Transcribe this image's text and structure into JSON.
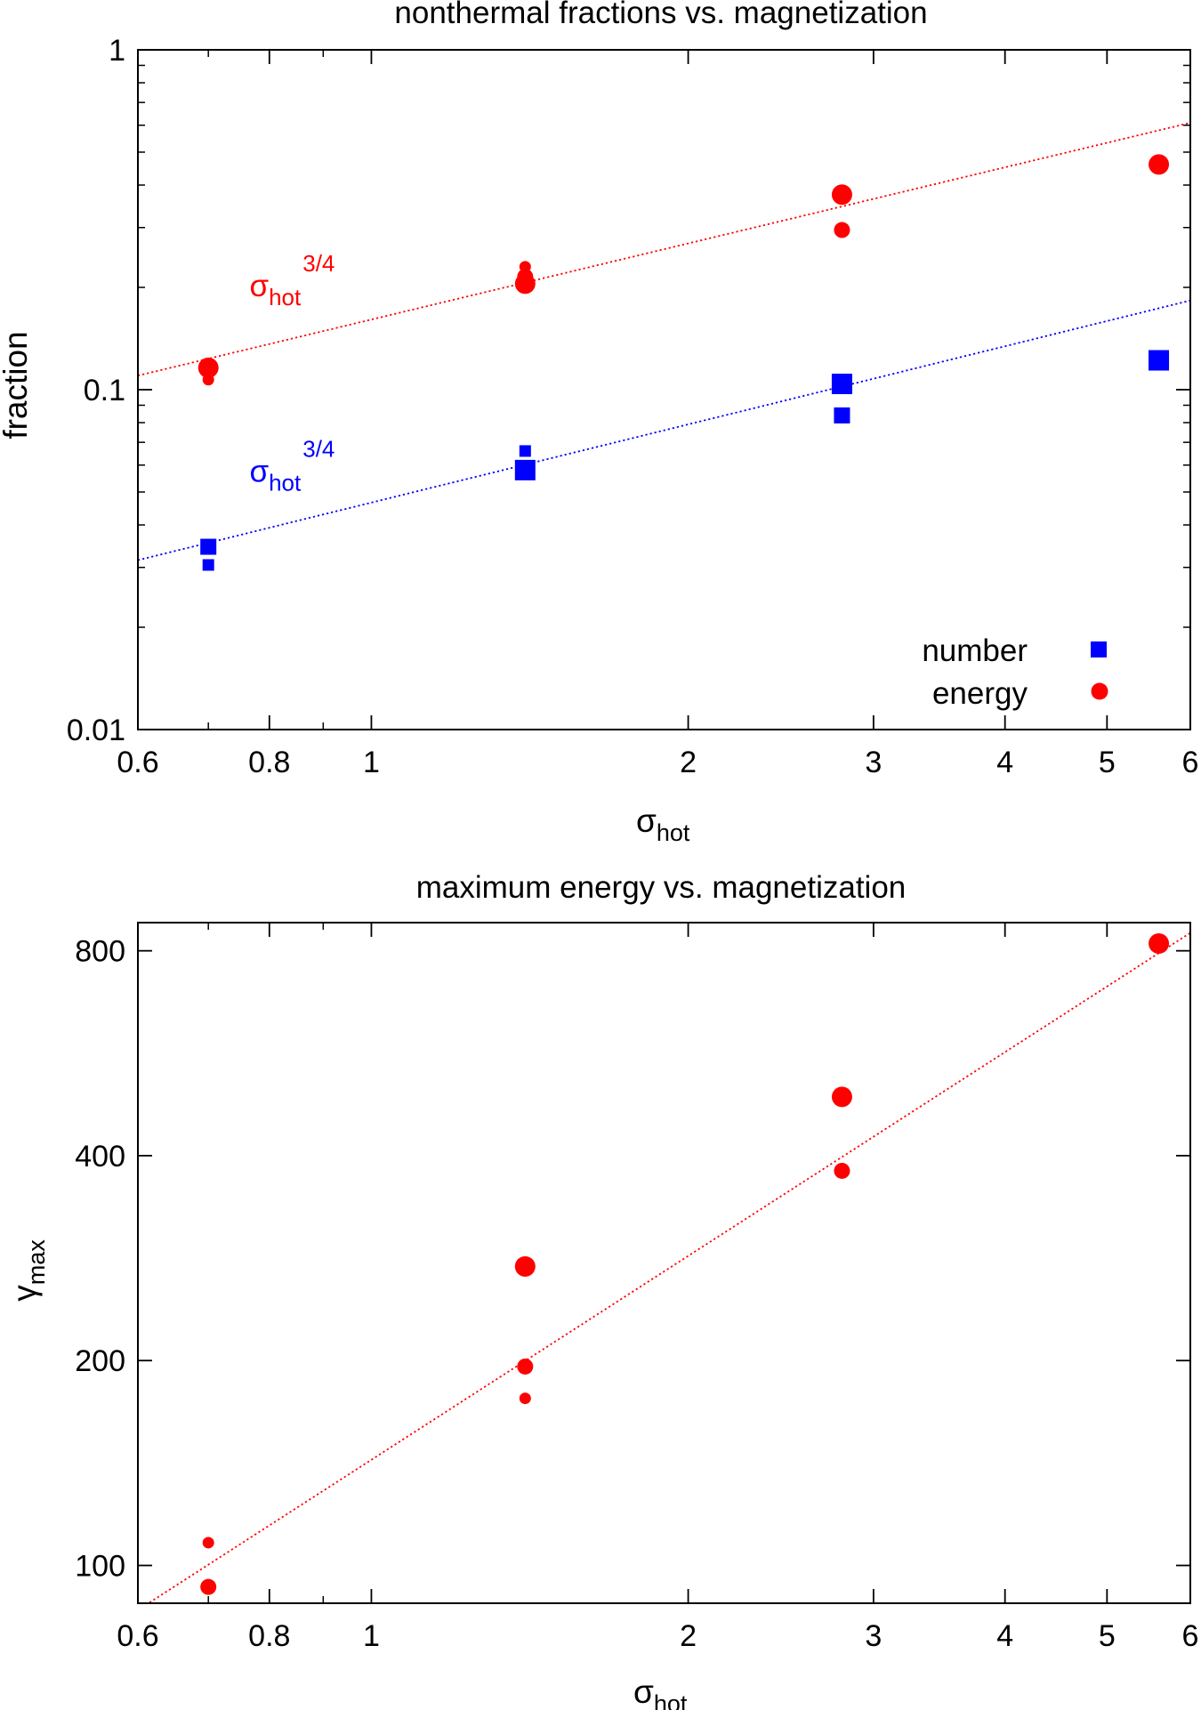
{
  "colors": {
    "number": "#0000ff",
    "energy": "#ff0000",
    "axis": "#000000"
  },
  "chart_data": [
    {
      "type": "scatter",
      "title": "nonthermal fractions vs. magnetization",
      "xlabel": "σ",
      "xlabel_sub": "hot",
      "ylabel": "fraction",
      "xscale": "log",
      "yscale": "log",
      "xlim": [
        0.6,
        6
      ],
      "ylim": [
        0.01,
        1
      ],
      "xticks": [
        {
          "v": 0.6,
          "label": "0.6"
        },
        {
          "v": 0.8,
          "label": "0.8"
        },
        {
          "v": 1,
          "label": "1"
        },
        {
          "v": 2,
          "label": "2"
        },
        {
          "v": 3,
          "label": "3"
        },
        {
          "v": 4,
          "label": "4"
        },
        {
          "v": 5,
          "label": "5"
        },
        {
          "v": 6,
          "label": "6"
        }
      ],
      "yticks": [
        {
          "v": 0.01,
          "label": "0.01"
        },
        {
          "v": 0.1,
          "label": "0.1"
        },
        {
          "v": 1,
          "label": "1"
        }
      ],
      "legend": {
        "position": "bottom-right",
        "entries": [
          "number",
          "energy"
        ]
      },
      "series": [
        {
          "name": "energy",
          "marker": "circle",
          "color": "#ff0000",
          "points": [
            {
              "x": 0.7,
              "y": 0.116,
              "size": "large"
            },
            {
              "x": 0.7,
              "y": 0.107,
              "size": "small"
            },
            {
              "x": 1.4,
              "y": 0.205,
              "size": "large"
            },
            {
              "x": 1.4,
              "y": 0.215,
              "size": "medium"
            },
            {
              "x": 1.4,
              "y": 0.23,
              "size": "small"
            },
            {
              "x": 2.8,
              "y": 0.375,
              "size": "large"
            },
            {
              "x": 2.8,
              "y": 0.295,
              "size": "medium"
            },
            {
              "x": 5.6,
              "y": 0.46,
              "size": "large"
            }
          ]
        },
        {
          "name": "number",
          "marker": "square",
          "color": "#0000ff",
          "points": [
            {
              "x": 0.7,
              "y": 0.0345,
              "size": "medium"
            },
            {
              "x": 0.7,
              "y": 0.0305,
              "size": "small"
            },
            {
              "x": 1.4,
              "y": 0.058,
              "size": "large"
            },
            {
              "x": 1.4,
              "y": 0.066,
              "size": "small"
            },
            {
              "x": 2.8,
              "y": 0.104,
              "size": "large"
            },
            {
              "x": 2.8,
              "y": 0.084,
              "size": "medium"
            },
            {
              "x": 5.6,
              "y": 0.122,
              "size": "large"
            }
          ]
        }
      ],
      "fit_lines": [
        {
          "color": "#ff0000",
          "style": "dotted",
          "x": [
            0.6,
            6
          ],
          "y": [
            0.11,
            0.61
          ]
        },
        {
          "color": "#0000ff",
          "style": "dotted",
          "x": [
            0.6,
            6
          ],
          "y": [
            0.0315,
            0.183
          ]
        }
      ],
      "annotations": [
        {
          "text": "σ",
          "sub": "hot",
          "sup": "3/4",
          "color": "#ff0000",
          "x": 0.82,
          "y": 0.2
        },
        {
          "text": "σ",
          "sub": "hot",
          "sup": "3/4",
          "color": "#0000ff",
          "x": 0.82,
          "y": 0.057
        }
      ]
    },
    {
      "type": "scatter",
      "title": "maximum energy vs. magnetization",
      "xlabel": "σ",
      "xlabel_sub": "hot",
      "ylabel": "γ",
      "ylabel_sub": "max",
      "xscale": "log",
      "yscale": "log",
      "xlim": [
        0.6,
        6
      ],
      "ylim": [
        88,
        880
      ],
      "xticks": [
        {
          "v": 0.6,
          "label": "0.6"
        },
        {
          "v": 0.8,
          "label": "0.8"
        },
        {
          "v": 1,
          "label": "1"
        },
        {
          "v": 2,
          "label": "2"
        },
        {
          "v": 3,
          "label": "3"
        },
        {
          "v": 4,
          "label": "4"
        },
        {
          "v": 5,
          "label": "5"
        },
        {
          "v": 6,
          "label": "6"
        }
      ],
      "yticks": [
        {
          "v": 100,
          "label": "100"
        },
        {
          "v": 200,
          "label": "200"
        },
        {
          "v": 400,
          "label": "400"
        },
        {
          "v": 800,
          "label": "800"
        }
      ],
      "series": [
        {
          "name": "energy",
          "marker": "circle",
          "color": "#ff0000",
          "points": [
            {
              "x": 0.7,
              "y": 108,
              "size": "small"
            },
            {
              "x": 0.7,
              "y": 93,
              "size": "medium"
            },
            {
              "x": 1.4,
              "y": 275,
              "size": "large"
            },
            {
              "x": 1.4,
              "y": 196,
              "size": "medium"
            },
            {
              "x": 1.4,
              "y": 176,
              "size": "small"
            },
            {
              "x": 2.8,
              "y": 488,
              "size": "large"
            },
            {
              "x": 2.8,
              "y": 380,
              "size": "medium"
            },
            {
              "x": 5.6,
              "y": 820,
              "size": "large"
            }
          ]
        }
      ],
      "fit_lines": [
        {
          "color": "#ff0000",
          "style": "dotted",
          "x": [
            0.6,
            6
          ],
          "y": [
            86,
            850
          ]
        }
      ]
    }
  ]
}
